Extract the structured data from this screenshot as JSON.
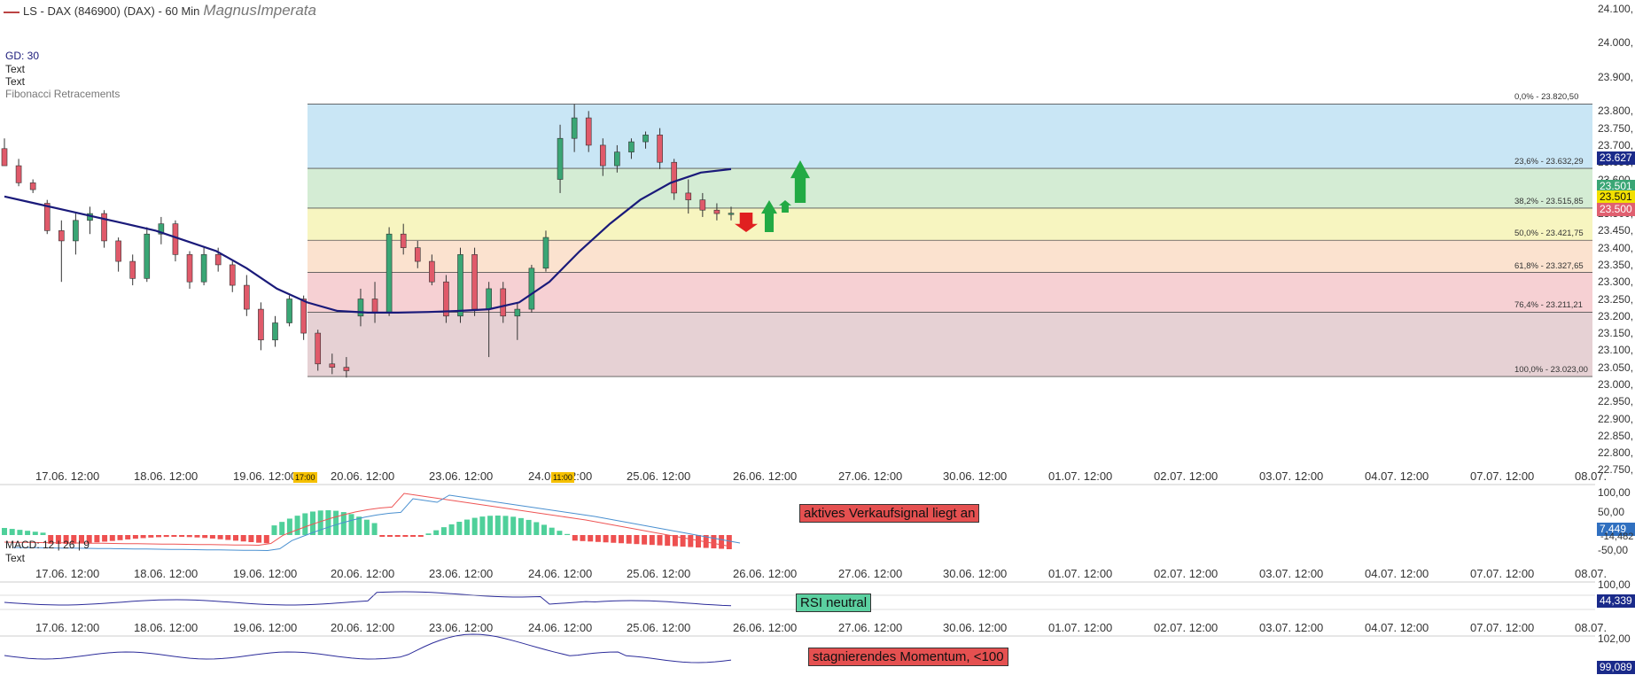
{
  "header": {
    "title": "LS - DAX (846900) (DAX) - 60 Min",
    "signature": "MagnusImperata"
  },
  "legend": {
    "gd": "GD: 30",
    "text1": "Text",
    "text2": "Text",
    "fib": "Fibonacci Retracements"
  },
  "price_axis": {
    "ticks": [
      "24.100,",
      "24.000,",
      "23.900,",
      "23.800,",
      "23.750,",
      "23.700,",
      "23.650,",
      "23.600,",
      "23.550,",
      "23.500,",
      "23.450,",
      "23.400,",
      "23.350,",
      "23.300,",
      "23.250,",
      "23.200,",
      "23.150,",
      "23.100,",
      "23.050,",
      "23.000,",
      "22.950,",
      "22.900,",
      "22.850,",
      "22.800,",
      "22.750,"
    ],
    "badges": [
      {
        "text": "23.627",
        "color": "#1a2a8a"
      },
      {
        "text": "23.501",
        "color": "#3aa675"
      },
      {
        "text": "23.501",
        "color": "#f2e000",
        "fg": "#111"
      },
      {
        "text": "23.500",
        "color": "#e06070"
      }
    ]
  },
  "fibonacci": {
    "levels": [
      {
        "label": "0,0% - 23.820,50",
        "price": 23820.5,
        "fill": "#c9e6f5"
      },
      {
        "label": "23,6% - 23.632,29",
        "price": 23632.29,
        "fill": "#d4ecd4"
      },
      {
        "label": "38,2% - 23.515,85",
        "price": 23515.85,
        "fill": "#f7f5c0"
      },
      {
        "label": "50,0% - 23.421,75",
        "price": 23421.75,
        "fill": "#fbe2cf"
      },
      {
        "label": "61,8% - 23.327,65",
        "price": 23327.65,
        "fill": "#f6d0d3"
      },
      {
        "label": "76,4% - 23.211,21",
        "price": 23211.21,
        "fill": "#e6d1d4"
      },
      {
        "label": "100,0% - 23.023,00",
        "price": 23023.0,
        "fill": null
      }
    ]
  },
  "x_axis": {
    "labels": [
      "17.06. 12:00",
      "18.06. 12:00",
      "19.06. 12:00",
      "20.06. 12:00",
      "23.06. 12:00",
      "24.06. 12:00",
      "25.06. 12:00",
      "26.06. 12:00",
      "27.06. 12:00",
      "30.06. 12:00",
      "01.07. 12:00",
      "02.07. 12:00",
      "03.07. 12:00",
      "04.07. 12:00",
      "07.07. 12:00",
      "08.07."
    ],
    "time_marks": [
      "17:00",
      "11:00"
    ]
  },
  "macd": {
    "label": "MACD: 12 | 26 | 9",
    "text": "Text",
    "ticks": [
      "100,00",
      "50,00",
      "-50,00"
    ],
    "value_badge": "7,449",
    "value_badge2": "-14,482",
    "signal_box": "aktives Verkaufsignal liegt an"
  },
  "rsi": {
    "ticks": [
      "100,00"
    ],
    "value_badge": "44,339",
    "signal_box": "RSI neutral"
  },
  "momentum": {
    "ticks": [
      "102,00"
    ],
    "value_badge": "99,089",
    "signal_box": "stagnierendes Momentum, <100"
  },
  "colors": {
    "up": "#3aa675",
    "down": "#e05a6a",
    "ma": "#1a1a7a",
    "arrow_up": "#22aa44",
    "arrow_down": "#e02020"
  },
  "chart_data": {
    "type": "candlestick",
    "title": "LS - DAX (846900) (DAX) - 60 Min",
    "ylim": [
      22725,
      24125
    ],
    "moving_average": {
      "name": "GD: 30",
      "values": [
        23550,
        23530,
        23510,
        23490,
        23470,
        23450,
        23420,
        23390,
        23340,
        23280,
        23240,
        23215,
        23210,
        23210,
        23212,
        23215,
        23220,
        23240,
        23300,
        23390,
        23470,
        23540,
        23590,
        23620,
        23630
      ]
    },
    "candles": [
      [
        23690,
        23720,
        23650,
        23640
      ],
      [
        23640,
        23660,
        23580,
        23590
      ],
      [
        23590,
        23600,
        23560,
        23570
      ],
      [
        23530,
        23540,
        23440,
        23450
      ],
      [
        23450,
        23480,
        23300,
        23420
      ],
      [
        23420,
        23500,
        23380,
        23480
      ],
      [
        23480,
        23520,
        23440,
        23500
      ],
      [
        23500,
        23510,
        23400,
        23420
      ],
      [
        23420,
        23430,
        23330,
        23360
      ],
      [
        23360,
        23380,
        23290,
        23310
      ],
      [
        23310,
        23460,
        23300,
        23440
      ],
      [
        23440,
        23490,
        23410,
        23470
      ],
      [
        23470,
        23480,
        23360,
        23380
      ],
      [
        23380,
        23390,
        23280,
        23300
      ],
      [
        23300,
        23400,
        23290,
        23380
      ],
      [
        23380,
        23400,
        23330,
        23350
      ],
      [
        23350,
        23360,
        23270,
        23290
      ],
      [
        23290,
        23320,
        23200,
        23220
      ],
      [
        23220,
        23240,
        23100,
        23130
      ],
      [
        23130,
        23200,
        23110,
        23180
      ],
      [
        23180,
        23260,
        23170,
        23250
      ],
      [
        23250,
        23260,
        23130,
        23150
      ],
      [
        23150,
        23160,
        23040,
        23060
      ],
      [
        23060,
        23090,
        23030,
        23050
      ],
      [
        23050,
        23080,
        23020,
        23040
      ],
      [
        23200,
        23280,
        23170,
        23250
      ],
      [
        23250,
        23300,
        23180,
        23210
      ],
      [
        23210,
        23460,
        23200,
        23440
      ],
      [
        23440,
        23470,
        23380,
        23400
      ],
      [
        23400,
        23420,
        23340,
        23360
      ],
      [
        23360,
        23380,
        23290,
        23300
      ],
      [
        23300,
        23320,
        23180,
        23200
      ],
      [
        23200,
        23400,
        23180,
        23380
      ],
      [
        23380,
        23400,
        23200,
        23220
      ],
      [
        23220,
        23300,
        23080,
        23280
      ],
      [
        23280,
        23300,
        23180,
        23200
      ],
      [
        23200,
        23240,
        23130,
        23220
      ],
      [
        23220,
        23350,
        23210,
        23340
      ],
      [
        23340,
        23450,
        23330,
        23430
      ],
      [
        23600,
        23760,
        23560,
        23720
      ],
      [
        23720,
        23820,
        23680,
        23780
      ],
      [
        23780,
        23800,
        23680,
        23700
      ],
      [
        23700,
        23720,
        23610,
        23640
      ],
      [
        23640,
        23700,
        23620,
        23680
      ],
      [
        23680,
        23720,
        23660,
        23710
      ],
      [
        23710,
        23740,
        23690,
        23730
      ],
      [
        23730,
        23750,
        23630,
        23650
      ],
      [
        23650,
        23660,
        23540,
        23560
      ],
      [
        23560,
        23600,
        23500,
        23540
      ],
      [
        23540,
        23560,
        23490,
        23510
      ],
      [
        23510,
        23530,
        23480,
        23500
      ],
      [
        23500,
        23520,
        23480,
        23501
      ]
    ]
  }
}
